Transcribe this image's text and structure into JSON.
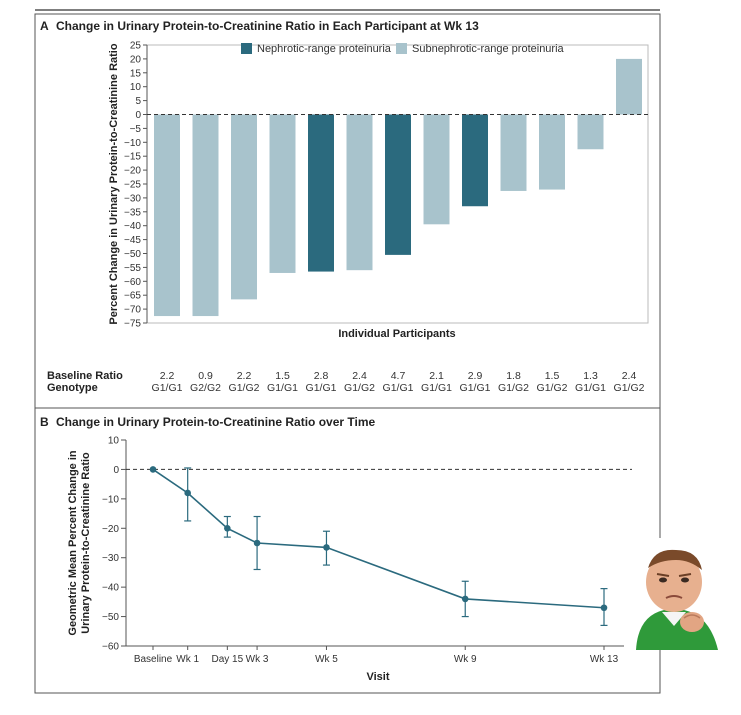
{
  "chart_data": [
    {
      "type": "bar",
      "panel_letter": "A",
      "title": "Change in Urinary Protein-to-Creatinine Ratio in Each Participant at Wk 13",
      "xlabel": "Individual Participants",
      "ylabel": "Percent Change in Urinary Protein-to-Creatinine Ratio",
      "ylim": [
        -75,
        25
      ],
      "yticks": [
        "25",
        "20",
        "15",
        "10",
        "5",
        "0",
        "-5",
        "-10",
        "-15",
        "-20",
        "-25",
        "-30",
        "-35",
        "-40",
        "-45",
        "-50",
        "-55",
        "-60",
        "-65",
        "-70",
        "-75"
      ],
      "legend_position": "top",
      "legend": [
        {
          "name": "Nephrotic-range proteinuria",
          "color": "#2b6a7e"
        },
        {
          "name": "Subnephrotic-range proteinuria",
          "color": "#a8c3cc"
        }
      ],
      "values": [
        -72.5,
        -72.5,
        -66.5,
        -57,
        -56.5,
        -56,
        -50.5,
        -39.5,
        -33,
        -27.5,
        -27,
        -12.5,
        20
      ],
      "groups": [
        "sub",
        "sub",
        "sub",
        "sub",
        "neph",
        "sub",
        "neph",
        "sub",
        "neph",
        "sub",
        "sub",
        "sub",
        "sub"
      ],
      "table": {
        "baseline_label": "Baseline Ratio",
        "genotype_label": "Genotype",
        "baseline": [
          "2.2",
          "0.9",
          "2.2",
          "1.5",
          "2.8",
          "2.4",
          "4.7",
          "2.1",
          "2.9",
          "1.8",
          "1.5",
          "1.3",
          "2.4"
        ],
        "genotype": [
          "G1/G1",
          "G2/G2",
          "G1/G2",
          "G1/G1",
          "G1/G1",
          "G1/G2",
          "G1/G1",
          "G1/G1",
          "G1/G1",
          "G1/G2",
          "G1/G2",
          "G1/G1",
          "G1/G2"
        ]
      },
      "reference_line": 0
    },
    {
      "type": "line",
      "panel_letter": "B",
      "title": "Change in Urinary Protein-to-Creatinine Ratio over Time",
      "xlabel": "Visit",
      "ylabel_line1": "Geometric Mean Percent Change in",
      "ylabel_line2": "Urinary Protein-to-Creatinine Ratio",
      "ylim": [
        -60,
        10
      ],
      "yticks": [
        "10",
        "0",
        "-10",
        "-20",
        "-30",
        "-40",
        "-50",
        "-60"
      ],
      "x_days": [
        0,
        7,
        15,
        21,
        35,
        63,
        91
      ],
      "categories": [
        "Baseline",
        "Wk 1",
        "Day 15",
        "Wk 3",
        "Wk 5",
        "Wk 9",
        "Wk 13"
      ],
      "values": [
        0,
        -8,
        -20,
        -25,
        -26.5,
        -44,
        -47
      ],
      "err_low": [
        0,
        -17.5,
        -23,
        -34,
        -32.5,
        -50,
        -53
      ],
      "err_high": [
        0,
        0.5,
        -16,
        -16,
        -21,
        -38,
        -40.5
      ],
      "color": "#2b6a7e",
      "reference_line": 0
    }
  ]
}
